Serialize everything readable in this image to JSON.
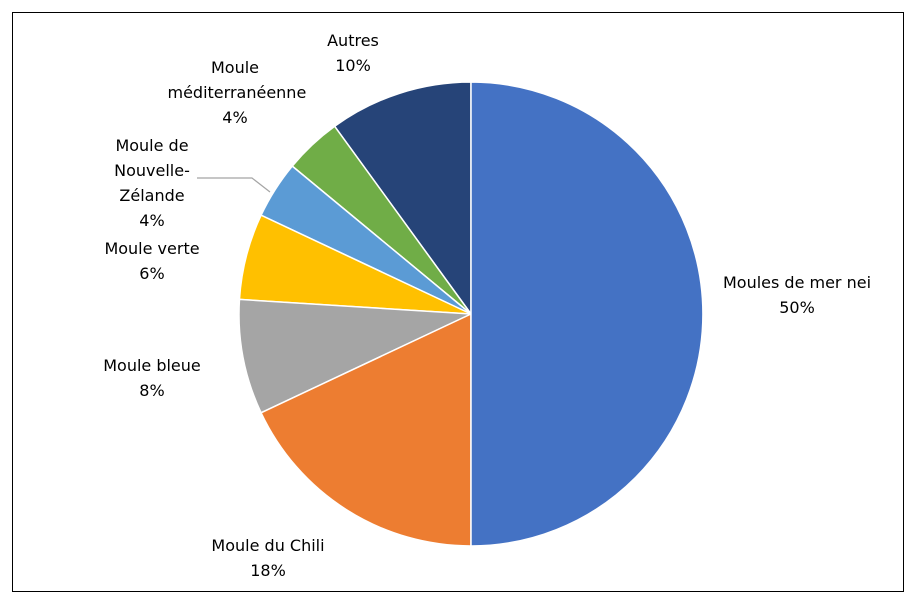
{
  "chart_data": {
    "type": "pie",
    "categories": [
      "Moules de mer nei",
      "Moule du Chili",
      "Moule bleue",
      "Moule verte",
      "Moule de Nouvelle-Zélande",
      "Moule méditerranéenne",
      "Autres"
    ],
    "values": [
      50,
      18,
      8,
      6,
      4,
      4,
      10
    ],
    "value_labels": [
      "50%",
      "18%",
      "8%",
      "6%",
      "4%",
      "4%",
      "10%"
    ],
    "colors": [
      "#4472c4",
      "#ed7d31",
      "#a5a5a5",
      "#ffc000",
      "#5b9bd5",
      "#70ad47",
      "#264478"
    ]
  }
}
